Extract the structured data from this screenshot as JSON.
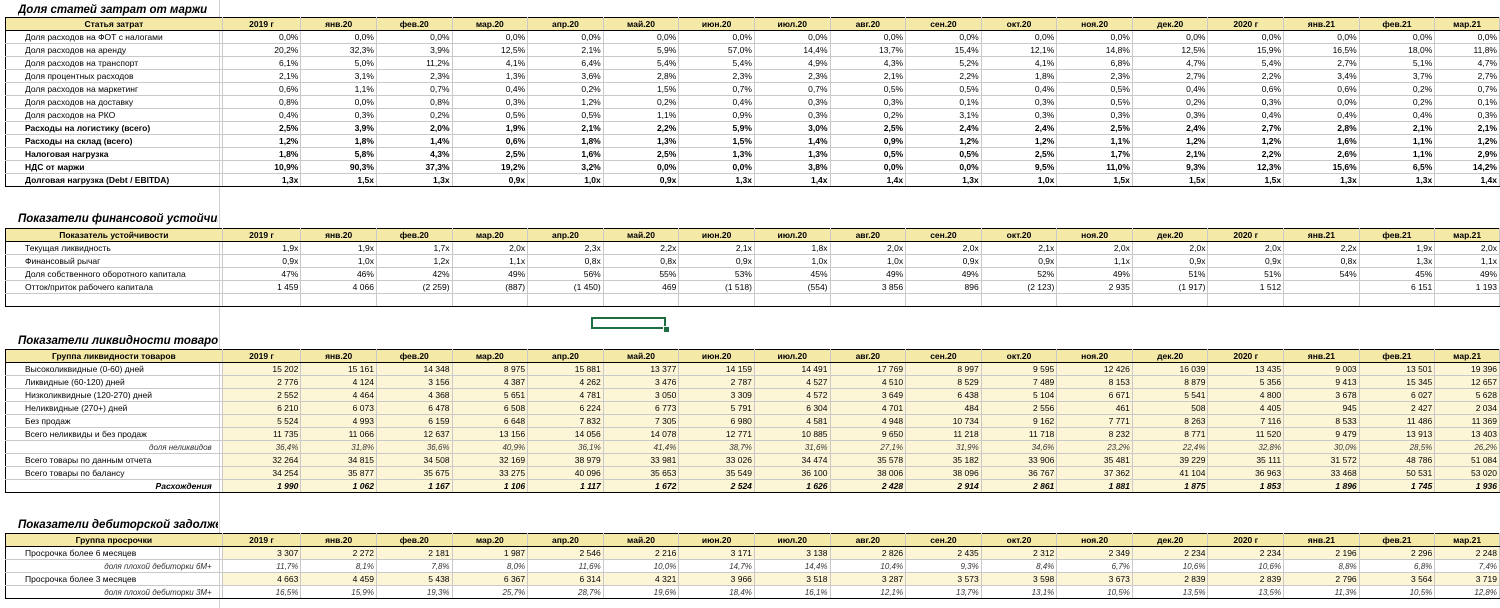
{
  "months": [
    "2019 г",
    "янв.20",
    "фев.20",
    "мар.20",
    "апр.20",
    "май.20",
    "июн.20",
    "июл.20",
    "авг.20",
    "сен.20",
    "окт.20",
    "ноя.20",
    "дек.20",
    "2020 г",
    "янв.21",
    "фев.21",
    "мар.21"
  ],
  "sections": [
    {
      "title": "Доля статей затрат от маржи",
      "header": "Статья затрат",
      "rows": [
        {
          "label": "Доля расходов на ФОТ с налогами",
          "style": "",
          "values": [
            "0,0%",
            "0,0%",
            "0,0%",
            "0,0%",
            "0,0%",
            "0,0%",
            "0,0%",
            "0,0%",
            "0,0%",
            "0,0%",
            "0,0%",
            "0,0%",
            "0,0%",
            "0,0%",
            "0,0%",
            "0,0%",
            "0,0%"
          ]
        },
        {
          "label": "Доля расходов на аренду",
          "style": "",
          "values": [
            "20,2%",
            "32,3%",
            "3,9%",
            "12,5%",
            "2,1%",
            "5,9%",
            "57,0%",
            "14,4%",
            "13,7%",
            "15,4%",
            "12,1%",
            "14,8%",
            "12,5%",
            "15,9%",
            "16,5%",
            "18,0%",
            "11,8%"
          ]
        },
        {
          "label": "Доля расходов на транспорт",
          "style": "",
          "values": [
            "6,1%",
            "5,0%",
            "11,2%",
            "4,1%",
            "6,4%",
            "5,4%",
            "5,4%",
            "4,9%",
            "4,3%",
            "5,2%",
            "4,1%",
            "6,8%",
            "4,7%",
            "5,4%",
            "2,7%",
            "5,1%",
            "4,7%"
          ]
        },
        {
          "label": "Доля процентных расходов",
          "style": "",
          "values": [
            "2,1%",
            "3,1%",
            "2,3%",
            "1,3%",
            "3,6%",
            "2,8%",
            "2,3%",
            "2,3%",
            "2,1%",
            "2,2%",
            "1,8%",
            "2,3%",
            "2,7%",
            "2,2%",
            "3,4%",
            "3,7%",
            "2,7%"
          ]
        },
        {
          "label": "Доля расходов на маркетинг",
          "style": "",
          "values": [
            "0,6%",
            "1,1%",
            "0,7%",
            "0,4%",
            "0,2%",
            "1,5%",
            "0,7%",
            "0,7%",
            "0,5%",
            "0,5%",
            "0,4%",
            "0,5%",
            "0,4%",
            "0,6%",
            "0,6%",
            "0,2%",
            "0,7%"
          ]
        },
        {
          "label": "Доля расходов на доставку",
          "style": "",
          "values": [
            "0,8%",
            "0,0%",
            "0,8%",
            "0,3%",
            "1,2%",
            "0,2%",
            "0,4%",
            "0,3%",
            "0,3%",
            "0,1%",
            "0,3%",
            "0,5%",
            "0,2%",
            "0,3%",
            "0,0%",
            "0,2%",
            "0,1%"
          ]
        },
        {
          "label": "Доля расходов на РКО",
          "style": "",
          "values": [
            "0,4%",
            "0,3%",
            "0,2%",
            "0,5%",
            "0,5%",
            "1,1%",
            "0,9%",
            "0,3%",
            "0,2%",
            "3,1%",
            "0,3%",
            "0,3%",
            "0,3%",
            "0,4%",
            "0,4%",
            "0,4%",
            "0,3%"
          ]
        },
        {
          "label": "Расходы на логистику (всего)",
          "style": "bold",
          "values": [
            "2,5%",
            "3,9%",
            "2,0%",
            "1,9%",
            "2,1%",
            "2,2%",
            "5,9%",
            "3,0%",
            "2,5%",
            "2,4%",
            "2,4%",
            "2,5%",
            "2,4%",
            "2,7%",
            "2,8%",
            "2,1%",
            "2,1%"
          ]
        },
        {
          "label": "Расходы на склад (всего)",
          "style": "bold",
          "values": [
            "1,2%",
            "1,8%",
            "1,4%",
            "0,6%",
            "1,8%",
            "1,3%",
            "1,5%",
            "1,4%",
            "0,9%",
            "1,2%",
            "1,2%",
            "1,1%",
            "1,2%",
            "1,2%",
            "1,6%",
            "1,1%",
            "1,2%"
          ]
        },
        {
          "label": "Налоговая нагрузка",
          "style": "bold",
          "values": [
            "1,8%",
            "5,8%",
            "4,3%",
            "2,5%",
            "1,6%",
            "2,5%",
            "1,3%",
            "1,3%",
            "0,5%",
            "0,5%",
            "2,5%",
            "1,7%",
            "2,1%",
            "2,2%",
            "2,6%",
            "1,1%",
            "2,9%"
          ]
        },
        {
          "label": "НДС от маржи",
          "style": "bold",
          "values": [
            "10,9%",
            "90,3%",
            "37,3%",
            "19,2%",
            "3,2%",
            "0,0%",
            "0,0%",
            "3,8%",
            "0,0%",
            "0,0%",
            "9,5%",
            "11,0%",
            "9,3%",
            "12,3%",
            "15,6%",
            "6,5%",
            "14,2%"
          ]
        },
        {
          "label": "Долговая нагрузка (Debt / EBITDA)",
          "style": "bold",
          "values": [
            "1,3x",
            "1,5x",
            "1,3x",
            "0,9x",
            "1,0x",
            "0,9x",
            "1,3x",
            "1,4x",
            "1,4x",
            "1,3x",
            "1,0x",
            "1,5x",
            "1,5x",
            "1,5x",
            "1,3x",
            "1,3x",
            "1,4x"
          ]
        }
      ]
    },
    {
      "title": "Показатели финансовой устойчивости",
      "header": "Показатель устойчивости",
      "rows": [
        {
          "label": "Текущая ликвидность",
          "style": "",
          "values": [
            "1,9x",
            "1,9x",
            "1,7x",
            "2,0x",
            "2,3x",
            "2,2x",
            "2,1x",
            "1,8x",
            "2,0x",
            "2,0x",
            "2,1x",
            "2,0x",
            "2,0x",
            "2,0x",
            "2,2x",
            "1,9x",
            "2,0x"
          ]
        },
        {
          "label": "Финансовый рычаг",
          "style": "",
          "values": [
            "0,9x",
            "1,0x",
            "1,2x",
            "1,1x",
            "0,8x",
            "0,8x",
            "0,9x",
            "1,0x",
            "1,0x",
            "0,9x",
            "0,9x",
            "1,1x",
            "0,9x",
            "0,9x",
            "0,8x",
            "1,3x",
            "1,1x"
          ]
        },
        {
          "label": "Доля собственного оборотного капитала",
          "style": "",
          "values": [
            "47%",
            "46%",
            "42%",
            "49%",
            "56%",
            "55%",
            "53%",
            "45%",
            "49%",
            "49%",
            "52%",
            "49%",
            "51%",
            "51%",
            "54%",
            "45%",
            "49%"
          ]
        },
        {
          "label": "Отток/приток рабочего капитала",
          "style": "",
          "values": [
            "1 459",
            "4 066",
            "(2 259)",
            "(887)",
            "(1 450)",
            "469",
            "(1 518)",
            "(554)",
            "3 856",
            "896",
            "(2 123)",
            "2 935",
            "(1 917)",
            "1 512",
            "",
            "6 151",
            "1 193"
          ]
        }
      ]
    },
    {
      "title": "Показатели ликвидности товаров",
      "header": "Группа ликвидности товаров",
      "rows": [
        {
          "label": "Высоколиквидные (0-60) дней",
          "style": "",
          "values": [
            "15 202",
            "15 161",
            "14 348",
            "8 975",
            "15 881",
            "13 377",
            "14 159",
            "14 491",
            "17 769",
            "8 997",
            "9 595",
            "12 426",
            "16 039",
            "13 435",
            "9 003",
            "13 501",
            "19 396"
          ]
        },
        {
          "label": "Ликвидные (60-120) дней",
          "style": "",
          "values": [
            "2 776",
            "4 124",
            "3 156",
            "4 387",
            "4 262",
            "3 476",
            "2 787",
            "4 527",
            "4 510",
            "8 529",
            "7 489",
            "8 153",
            "8 879",
            "5 356",
            "9 413",
            "15 345",
            "12 657"
          ]
        },
        {
          "label": "Низколиквидные (120-270) дней",
          "style": "",
          "values": [
            "2 552",
            "4 464",
            "4 368",
            "5 651",
            "4 781",
            "3 050",
            "3 309",
            "4 572",
            "3 649",
            "6 438",
            "5 104",
            "6 671",
            "5 541",
            "4 800",
            "3 678",
            "6 027",
            "5 628"
          ]
        },
        {
          "label": "Неликвидные (270+) дней",
          "style": "",
          "values": [
            "6 210",
            "6 073",
            "6 478",
            "6 508",
            "6 224",
            "6 773",
            "5 791",
            "6 304",
            "4 701",
            "484",
            "2 556",
            "461",
            "508",
            "4 405",
            "945",
            "2 427",
            "2 034"
          ]
        },
        {
          "label": "Без продаж",
          "style": "",
          "values": [
            "5 524",
            "4 993",
            "6 159",
            "6 648",
            "7 832",
            "7 305",
            "6 980",
            "4 581",
            "4 948",
            "10 734",
            "9 162",
            "7 771",
            "8 263",
            "7 116",
            "8 533",
            "11 486",
            "11 369"
          ]
        },
        {
          "label": "Всего неликвиды и без продаж",
          "style": "",
          "values": [
            "11 735",
            "11 066",
            "12 637",
            "13 156",
            "14 056",
            "14 078",
            "12 771",
            "10 885",
            "9 650",
            "11 218",
            "11 718",
            "8 232",
            "8 771",
            "11 520",
            "9 479",
            "13 913",
            "13 403"
          ]
        },
        {
          "label": "доля неликвидов",
          "style": "ital",
          "values": [
            "36,4%",
            "31,8%",
            "36,6%",
            "40,9%",
            "36,1%",
            "41,4%",
            "38,7%",
            "31,6%",
            "27,1%",
            "31,9%",
            "34,6%",
            "23,2%",
            "22,4%",
            "32,8%",
            "30,0%",
            "28,5%",
            "26,2%"
          ]
        },
        {
          "label": "Всего товары по данным отчета",
          "style": "",
          "values": [
            "32 264",
            "34 815",
            "34 508",
            "32 169",
            "38 979",
            "33 981",
            "33 026",
            "34 474",
            "35 578",
            "35 182",
            "33 906",
            "35 481",
            "39 229",
            "35 111",
            "31 572",
            "48 786",
            "51 084"
          ]
        },
        {
          "label": "Всего товары по балансу",
          "style": "",
          "values": [
            "34 254",
            "35 877",
            "35 675",
            "33 275",
            "40 096",
            "35 653",
            "35 549",
            "36 100",
            "38 006",
            "38 096",
            "36 767",
            "37 362",
            "41 104",
            "36 963",
            "33 468",
            "50 531",
            "53 020"
          ]
        },
        {
          "label": "Расхождения",
          "style": "boldital",
          "values": [
            "1 990",
            "1 062",
            "1 167",
            "1 106",
            "1 117",
            "1 672",
            "2 524",
            "1 626",
            "2 428",
            "2 914",
            "2 861",
            "1 881",
            "1 875",
            "1 853",
            "1 896",
            "1 745",
            "1 936"
          ]
        }
      ]
    },
    {
      "title": "Показатели дебиторской задолженности",
      "header": "Группа просрочки",
      "rows": [
        {
          "label": "Просрочка более 6 месяцев",
          "style": "",
          "values": [
            "3 307",
            "2 272",
            "2 181",
            "1 987",
            "2 546",
            "2 216",
            "3 171",
            "3 138",
            "2 826",
            "2 435",
            "2 312",
            "2 349",
            "2 234",
            "2 234",
            "2 196",
            "2 296",
            "2 248"
          ]
        },
        {
          "label": "доля плохой дебиторки 6М+",
          "style": "ital",
          "values": [
            "11,7%",
            "8,1%",
            "7,8%",
            "8,0%",
            "11,6%",
            "10,0%",
            "14,7%",
            "14,4%",
            "10,4%",
            "9,3%",
            "8,4%",
            "6,7%",
            "10,6%",
            "10,6%",
            "8,8%",
            "6,8%",
            "7,4%"
          ]
        },
        {
          "label": "Просрочка более 3 месяцев",
          "style": "",
          "values": [
            "4 663",
            "4 459",
            "5 438",
            "6 367",
            "6 314",
            "4 321",
            "3 966",
            "3 518",
            "3 287",
            "3 573",
            "3 598",
            "3 673",
            "2 839",
            "2 839",
            "2 796",
            "3 564",
            "3 719"
          ]
        },
        {
          "label": "доля плохой дебиторки 3М+",
          "style": "ital",
          "values": [
            "16,5%",
            "15,9%",
            "19,3%",
            "25,7%",
            "28,7%",
            "19,6%",
            "18,4%",
            "16,1%",
            "12,1%",
            "13,7%",
            "13,1%",
            "10,5%",
            "13,5%",
            "13,5%",
            "11,3%",
            "10,5%",
            "12,8%"
          ]
        }
      ]
    }
  ]
}
